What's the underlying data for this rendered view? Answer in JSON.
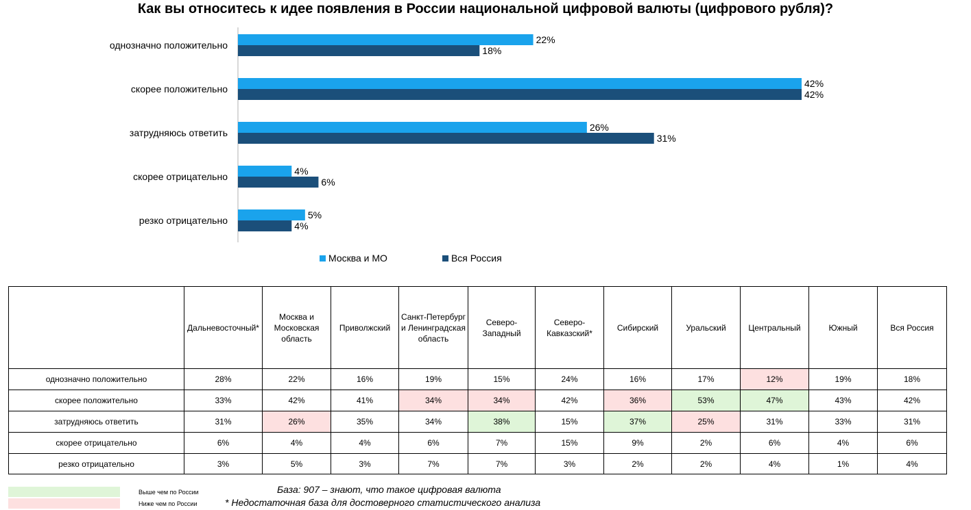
{
  "colors": {
    "moscow": "#1aa3ec",
    "russia": "#1b4f7a",
    "above": "#dff5d8",
    "below": "#fde0e0"
  },
  "chart_data": {
    "type": "bar",
    "orientation": "horizontal",
    "title": "Как вы относитесь к идее появления в России национальной цифровой валюты (цифрового рубля)?",
    "categories": [
      "однозначно положительно",
      "скорее положительно",
      "затрудняюсь ответить",
      "скорее отрицательно",
      "резко отрицательно"
    ],
    "series": [
      {
        "name": "Москва и МО",
        "values": [
          22,
          42,
          26,
          4,
          5
        ],
        "labels": [
          "22%",
          "42%",
          "26%",
          "4%",
          "5%"
        ]
      },
      {
        "name": "Вся Россия",
        "values": [
          18,
          42,
          31,
          6,
          4
        ],
        "labels": [
          "18%",
          "42%",
          "31%",
          "6%",
          "4%"
        ]
      }
    ],
    "xlim": [
      0,
      42
    ],
    "grid": false,
    "legend_position": "bottom"
  },
  "table": {
    "columns": [
      "Дальневосточный*",
      "Москва и Московская область",
      "Приволжский",
      "Санкт-Петербург и Ленинградская область",
      "Северо-Западный",
      "Северо-Кавказский*",
      "Сибирский",
      "Уральский",
      "Центральный",
      "Южный",
      "Вся Россия"
    ],
    "rows": [
      {
        "label": "однозначно положительно",
        "values": [
          "28%",
          "22%",
          "16%",
          "19%",
          "15%",
          "24%",
          "16%",
          "17%",
          "12%",
          "19%",
          "18%"
        ],
        "marks": [
          "",
          "",
          "",
          "",
          "",
          "",
          "",
          "",
          "below",
          "",
          ""
        ]
      },
      {
        "label": "скорее положительно",
        "values": [
          "33%",
          "42%",
          "41%",
          "34%",
          "34%",
          "42%",
          "36%",
          "53%",
          "47%",
          "43%",
          "42%"
        ],
        "marks": [
          "",
          "",
          "",
          "below",
          "below",
          "",
          "below",
          "above",
          "above",
          "",
          ""
        ]
      },
      {
        "label": "затрудняюсь ответить",
        "values": [
          "31%",
          "26%",
          "35%",
          "34%",
          "38%",
          "15%",
          "37%",
          "25%",
          "31%",
          "33%",
          "31%"
        ],
        "marks": [
          "",
          "below",
          "",
          "",
          "above",
          "",
          "above",
          "below",
          "",
          "",
          ""
        ]
      },
      {
        "label": "скорее отрицательно",
        "values": [
          "6%",
          "4%",
          "4%",
          "6%",
          "7%",
          "15%",
          "9%",
          "2%",
          "6%",
          "4%",
          "6%"
        ],
        "marks": [
          "",
          "",
          "",
          "",
          "",
          "",
          "",
          "",
          "",
          "",
          ""
        ]
      },
      {
        "label": "резко отрицательно",
        "values": [
          "3%",
          "5%",
          "3%",
          "7%",
          "7%",
          "3%",
          "2%",
          "2%",
          "4%",
          "1%",
          "4%"
        ],
        "marks": [
          "",
          "",
          "",
          "",
          "",
          "",
          "",
          "",
          "",
          "",
          ""
        ]
      }
    ]
  },
  "footer": {
    "above_label": "Выше чем по России",
    "below_label": "Ниже чем по России",
    "base_note": "База: 907 – знают, что такое цифровая валюта",
    "asterisk_note": "* Недостаточная база для достоверного статистического анализа"
  }
}
